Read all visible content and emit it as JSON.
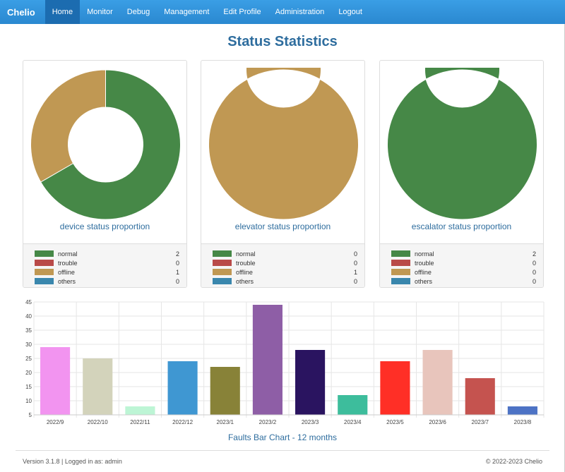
{
  "nav": {
    "brand": "Chelio",
    "items": [
      {
        "label": "Home",
        "active": true
      },
      {
        "label": "Monitor"
      },
      {
        "label": "Debug"
      },
      {
        "label": "Management"
      },
      {
        "label": "Edit Profile"
      },
      {
        "label": "Administration"
      },
      {
        "label": "Logout"
      }
    ]
  },
  "page_title": "Status Statistics",
  "colors": {
    "normal": "#468847",
    "trouble": "#b94a48",
    "offline": "#c09853",
    "others": "#3a87ad"
  },
  "panels": [
    {
      "caption": "device status proportion",
      "legend": [
        {
          "label": "normal",
          "count": "2"
        },
        {
          "label": "trouble",
          "count": "0"
        },
        {
          "label": "offline",
          "count": "1"
        },
        {
          "label": "others",
          "count": "0"
        }
      ]
    },
    {
      "caption": "elevator status proportion",
      "legend": [
        {
          "label": "normal",
          "count": "0"
        },
        {
          "label": "trouble",
          "count": "0"
        },
        {
          "label": "offline",
          "count": "1"
        },
        {
          "label": "others",
          "count": "0"
        }
      ]
    },
    {
      "caption": "escalator status proportion",
      "legend": [
        {
          "label": "normal",
          "count": "2"
        },
        {
          "label": "trouble",
          "count": "0"
        },
        {
          "label": "offline",
          "count": "0"
        },
        {
          "label": "others",
          "count": "0"
        }
      ]
    }
  ],
  "chart_data": {
    "type": "bar",
    "title": "Faults Bar Chart - 12 months",
    "categories": [
      "2022/9",
      "2022/10",
      "2022/11",
      "2022/12",
      "2023/1",
      "2023/2",
      "2023/3",
      "2023/4",
      "2023/5",
      "2023/6",
      "2023/7",
      "2023/8"
    ],
    "values": [
      29,
      25,
      8,
      24,
      22,
      44,
      28,
      12,
      24,
      28,
      18,
      8
    ],
    "colors": [
      "#f294f0",
      "#d3d3bb",
      "#bdf5d5",
      "#3f97d2",
      "#888238",
      "#8e5ea6",
      "#2a1460",
      "#3dbd9c",
      "#ff2f26",
      "#e8c5bc",
      "#c5534f",
      "#4d73c5"
    ],
    "ylim": [
      5,
      45
    ],
    "yticks": [
      5,
      10,
      15,
      20,
      25,
      30,
      35,
      40,
      45
    ],
    "grid": true,
    "xlabel": "",
    "ylabel": ""
  },
  "footer": {
    "left": "Version 3.1.8 | Logged in as: admin",
    "right": "© 2022-2023  Chelio"
  }
}
